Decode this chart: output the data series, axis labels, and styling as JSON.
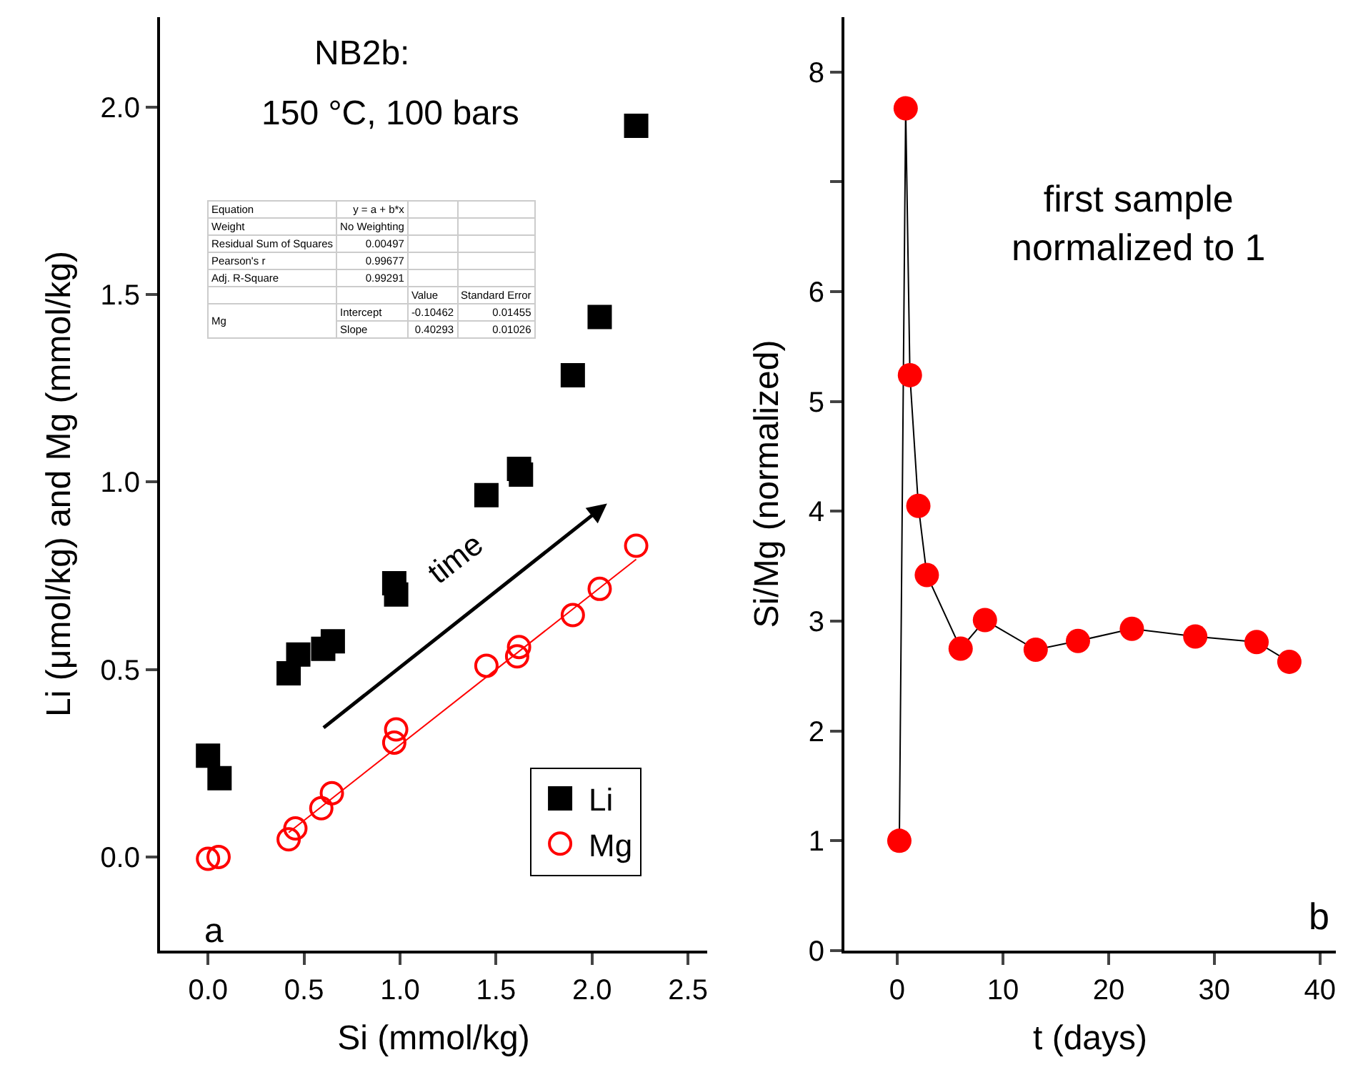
{
  "chart_data": [
    {
      "type": "scatter",
      "xlabel": "Si (mmol/kg)",
      "ylabel": "Li (μmol/kg) and Mg (mmol/kg)",
      "xlim": [
        -0.25,
        2.6
      ],
      "xticks": [
        {
          "value": 0,
          "label": "0.0"
        },
        {
          "value": 0.5,
          "label": "0.5"
        },
        {
          "value": 1,
          "label": "1.0"
        },
        {
          "value": 1.5,
          "label": "1.5"
        },
        {
          "value": 2,
          "label": "2.0"
        },
        {
          "value": 2.5,
          "label": "2.5"
        }
      ],
      "ylim": [
        -0.25,
        2.24
      ],
      "yticks": [
        {
          "value": 0,
          "label": "0.0"
        },
        {
          "value": 0.5,
          "label": "0.5"
        },
        {
          "value": 1,
          "label": "1.0"
        },
        {
          "value": 1.5,
          "label": "1.5"
        },
        {
          "value": 2,
          "label": "2.0"
        }
      ],
      "grid": false,
      "legend": "bottom right",
      "series": [
        {
          "name": "Li",
          "color": "#000000",
          "marker": "square",
          "x": [
            0.0,
            0.06,
            0.42,
            0.47,
            0.6,
            0.65,
            0.97,
            0.98,
            1.45,
            1.62,
            1.63,
            1.9,
            2.04,
            2.23
          ],
          "values": [
            0.27,
            0.21,
            0.49,
            0.54,
            0.555,
            0.575,
            0.73,
            0.7,
            0.965,
            1.035,
            1.02,
            1.285,
            1.44,
            1.95
          ]
        },
        {
          "name": "Mg",
          "color": "#ff0000",
          "marker": "circle",
          "x": [
            0.0,
            0.055,
            0.42,
            0.455,
            0.59,
            0.645,
            0.97,
            0.98,
            1.45,
            1.61,
            1.62,
            1.9,
            2.04,
            2.23
          ],
          "values": [
            -0.005,
            0.0,
            0.047,
            0.076,
            0.13,
            0.17,
            0.305,
            0.34,
            0.51,
            0.535,
            0.56,
            0.645,
            0.715,
            0.83
          ]
        },
        {
          "type": "line",
          "color": "#ff0000",
          "marker": "none",
          "x": [
            0.42,
            2.23
          ],
          "values": [
            0.065,
            0.794
          ]
        }
      ],
      "annotations": [
        "NB2b:",
        "150 °C, 100 bars",
        "time",
        "a"
      ]
    },
    {
      "type": "line",
      "xlabel": "t (days)",
      "ylabel": "Si/Mg (normalized)",
      "xlim": [
        -5,
        41.5
      ],
      "xticks": [
        0,
        10,
        20,
        30,
        40
      ],
      "ylim": [
        0,
        8.5
      ],
      "yticks": [
        0,
        1,
        2,
        3,
        4,
        5,
        6,
        {
          "value": 7,
          "label": null
        },
        8
      ],
      "grid": false,
      "legend": false,
      "series": [
        {
          "color": "#ff0000",
          "marker": "circle",
          "x": [
            0.2,
            0.8,
            1.2,
            2.0,
            2.8,
            6.0,
            8.3,
            13.1,
            17.1,
            22.2,
            28.2,
            34.0,
            37.1
          ],
          "values": [
            1.0,
            7.67,
            5.24,
            4.05,
            3.42,
            2.75,
            3.01,
            2.74,
            2.82,
            2.93,
            2.86,
            2.81,
            2.63
          ]
        }
      ],
      "annotations": [
        "first sample\nnormalized to 1",
        "b"
      ]
    },
    {
      "type": "other",
      "annotations": [
        "Equation",
        "y = a + b*x",
        "Weight",
        "No Weighting",
        "Residual Sum of Squares",
        "0.00497",
        "Pearson's r",
        "0.99677",
        "Adj. R-Square",
        "0.99291",
        "Value",
        "Standard Error",
        "Mg",
        "Intercept",
        "-0.10462",
        "0.01455",
        "Slope",
        "0.40293",
        "0.01026"
      ]
    }
  ]
}
